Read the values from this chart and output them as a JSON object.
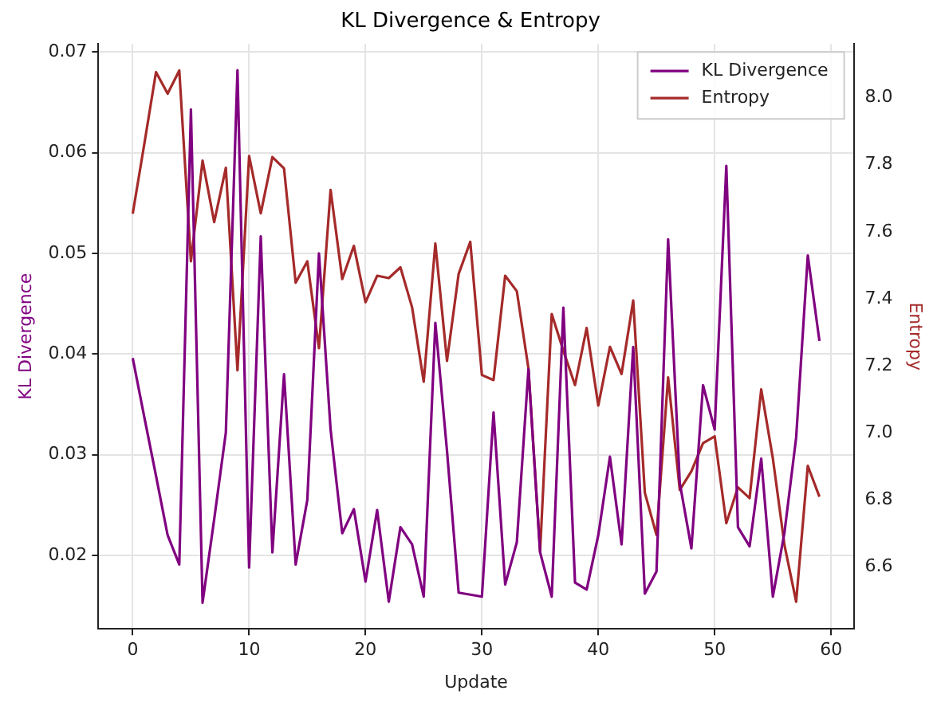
{
  "chart_data": {
    "type": "line",
    "title": "KL Divergence & Entropy",
    "xlabel": "Update",
    "ylabel": "KL Divergence",
    "y2label": "Entropy",
    "x": [
      0,
      1,
      2,
      3,
      4,
      5,
      6,
      7,
      8,
      9,
      10,
      11,
      12,
      13,
      14,
      15,
      16,
      17,
      18,
      19,
      20,
      21,
      22,
      23,
      24,
      25,
      26,
      27,
      28,
      29,
      30,
      31,
      32,
      33,
      34,
      35,
      36,
      37,
      38,
      39,
      40,
      41,
      42,
      43,
      44,
      45,
      46,
      47,
      48,
      49,
      50,
      51,
      52,
      53,
      54,
      55,
      56,
      57,
      58,
      59
    ],
    "series": [
      {
        "name": "KL Divergence",
        "color": "#800080",
        "values": [
          0.0396,
          0.0337,
          0.0279,
          0.022,
          0.0191,
          0.0643,
          0.0153,
          0.0236,
          0.0322,
          0.0682,
          0.0188,
          0.0517,
          0.0203,
          0.038,
          0.0191,
          0.0255,
          0.05,
          0.0325,
          0.0222,
          0.0246,
          0.0174,
          0.0245,
          0.0154,
          0.0228,
          0.0211,
          0.0159,
          0.0431,
          0.0304,
          0.0163,
          0.0161,
          0.0159,
          0.0342,
          0.0171,
          0.0213,
          0.0385,
          0.0203,
          0.0159,
          0.0446,
          0.0173,
          0.0166,
          0.022,
          0.0298,
          0.0211,
          0.0407,
          0.0162,
          0.0184,
          0.0514,
          0.0272,
          0.0207,
          0.0369,
          0.0325,
          0.0587,
          0.0228,
          0.0209,
          0.0296,
          0.0159,
          0.0223,
          0.0317,
          0.0498,
          0.0413
        ]
      },
      {
        "name": "Entropy",
        "color": "#a52a2a",
        "axis": "y2",
        "values": [
          7.654,
          7.863,
          8.076,
          8.012,
          8.081,
          7.512,
          7.812,
          7.629,
          7.791,
          7.187,
          7.826,
          7.655,
          7.823,
          7.789,
          7.448,
          7.512,
          7.253,
          7.725,
          7.459,
          7.558,
          7.39,
          7.469,
          7.462,
          7.494,
          7.375,
          7.153,
          7.565,
          7.215,
          7.474,
          7.57,
          7.173,
          7.158,
          7.469,
          7.423,
          7.192,
          6.647,
          7.355,
          7.245,
          7.143,
          7.313,
          7.082,
          7.257,
          7.176,
          7.395,
          6.822,
          6.696,
          7.166,
          6.83,
          6.886,
          6.97,
          6.99,
          6.731,
          6.838,
          6.806,
          7.13,
          6.924,
          6.665,
          6.497,
          6.902,
          6.81
        ]
      }
    ],
    "xlim": [
      -2.95,
      61.95
    ],
    "xticks": [
      0,
      10,
      20,
      30,
      40,
      50,
      60
    ],
    "ylim": [
      0.0127,
      0.0708
    ],
    "yticks": [
      0.02,
      0.03,
      0.04,
      0.05,
      0.06,
      0.07
    ],
    "y2lim": [
      6.416,
      8.16
    ],
    "y2ticks": [
      6.6,
      6.8,
      {
        "value": 7,
        "label": "7.0"
      },
      7.2,
      7.4,
      7.6,
      7.8,
      {
        "value": 8,
        "label": "8.0"
      }
    ],
    "grid": true,
    "legend": "top right",
    "marker": "none",
    "line_style": "solid"
  }
}
